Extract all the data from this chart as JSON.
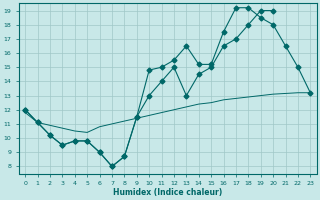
{
  "xlabel": "Humidex (Indice chaleur)",
  "bg_color": "#c8e8e8",
  "line_color": "#006868",
  "grid_color": "#a0c8c8",
  "xlim": [
    -0.5,
    23.5
  ],
  "ylim": [
    7.5,
    19.5
  ],
  "xticks": [
    0,
    1,
    2,
    3,
    4,
    5,
    6,
    7,
    8,
    9,
    10,
    11,
    12,
    13,
    14,
    15,
    16,
    17,
    18,
    19,
    20,
    21,
    22,
    23
  ],
  "yticks": [
    8,
    9,
    10,
    11,
    12,
    13,
    14,
    15,
    16,
    17,
    18,
    19
  ],
  "line1_x": [
    0,
    1,
    2,
    3,
    4,
    5,
    6,
    7,
    8,
    9,
    10,
    11,
    12,
    13,
    14,
    15,
    16,
    17,
    18,
    19,
    20
  ],
  "line1_y": [
    12.0,
    11.1,
    10.2,
    9.5,
    9.8,
    9.8,
    9.0,
    8.0,
    8.7,
    11.5,
    13.0,
    14.0,
    15.0,
    13.0,
    14.5,
    15.0,
    16.5,
    17.0,
    18.0,
    19.0,
    19.0
  ],
  "line2_x": [
    0,
    1,
    2,
    3,
    4,
    5,
    6,
    7,
    8,
    9,
    10,
    11,
    12,
    13,
    14,
    15,
    16,
    17,
    18,
    19,
    20,
    21,
    22,
    23
  ],
  "line2_y": [
    12.0,
    11.1,
    10.2,
    9.5,
    9.8,
    9.8,
    9.0,
    8.0,
    8.7,
    11.5,
    14.8,
    15.0,
    15.5,
    16.5,
    15.2,
    15.2,
    17.5,
    19.2,
    19.2,
    18.5,
    18.0,
    16.5,
    15.0,
    13.2
  ],
  "line3_x": [
    0,
    1,
    2,
    3,
    4,
    5,
    6,
    7,
    8,
    9,
    10,
    11,
    12,
    13,
    14,
    15,
    16,
    17,
    18,
    19,
    20,
    21,
    22,
    23
  ],
  "line3_y": [
    11.8,
    11.1,
    10.9,
    10.7,
    10.5,
    10.4,
    10.8,
    11.0,
    11.2,
    11.4,
    11.6,
    11.8,
    12.0,
    12.2,
    12.4,
    12.5,
    12.7,
    12.8,
    12.9,
    13.0,
    13.1,
    13.15,
    13.2,
    13.2
  ],
  "marker_size": 2.5
}
